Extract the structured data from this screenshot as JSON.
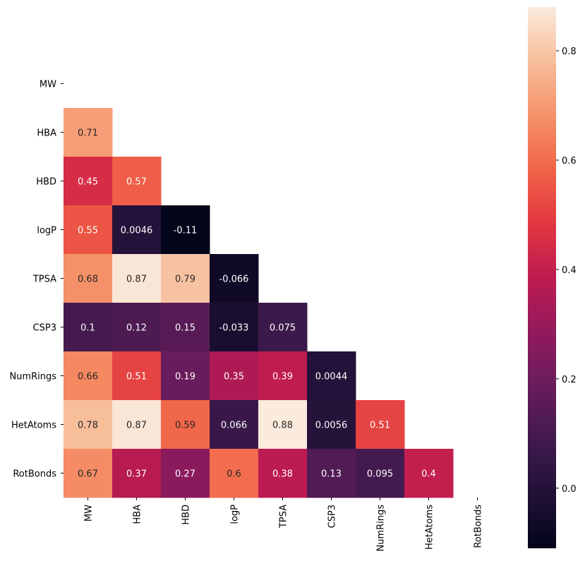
{
  "chart_data": {
    "type": "heatmap",
    "variables": [
      "MW",
      "HBA",
      "HBD",
      "logP",
      "TPSA",
      "CSP3",
      "NumRings",
      "HetAtoms",
      "RotBonds"
    ],
    "mask": "upper-triangle-including-diagonal",
    "matrix": [
      [
        null,
        null,
        null,
        null,
        null,
        null,
        null,
        null,
        null
      ],
      [
        "0.71",
        null,
        null,
        null,
        null,
        null,
        null,
        null,
        null
      ],
      [
        "0.45",
        "0.57",
        null,
        null,
        null,
        null,
        null,
        null,
        null
      ],
      [
        "0.55",
        "0.0046",
        "-0.11",
        null,
        null,
        null,
        null,
        null,
        null
      ],
      [
        "0.68",
        "0.87",
        "0.79",
        "-0.066",
        null,
        null,
        null,
        null,
        null
      ],
      [
        "0.1",
        "0.12",
        "0.15",
        "-0.033",
        "0.075",
        null,
        null,
        null,
        null
      ],
      [
        "0.66",
        "0.51",
        "0.19",
        "0.35",
        "0.39",
        "0.0044",
        null,
        null,
        null
      ],
      [
        "0.78",
        "0.87",
        "0.59",
        "0.066",
        "0.88",
        "0.0056",
        "0.51",
        null,
        null
      ],
      [
        "0.67",
        "0.37",
        "0.27",
        "0.6",
        "0.38",
        "0.13",
        "0.095",
        "0.4",
        null
      ]
    ],
    "colormap": "rocket",
    "vmin": -0.11,
    "vmax": 0.88,
    "colorbar_ticks": [
      "0.0",
      "0.2",
      "0.4",
      "0.6",
      "0.8"
    ],
    "title": "",
    "xlabel": "",
    "ylabel": ""
  }
}
